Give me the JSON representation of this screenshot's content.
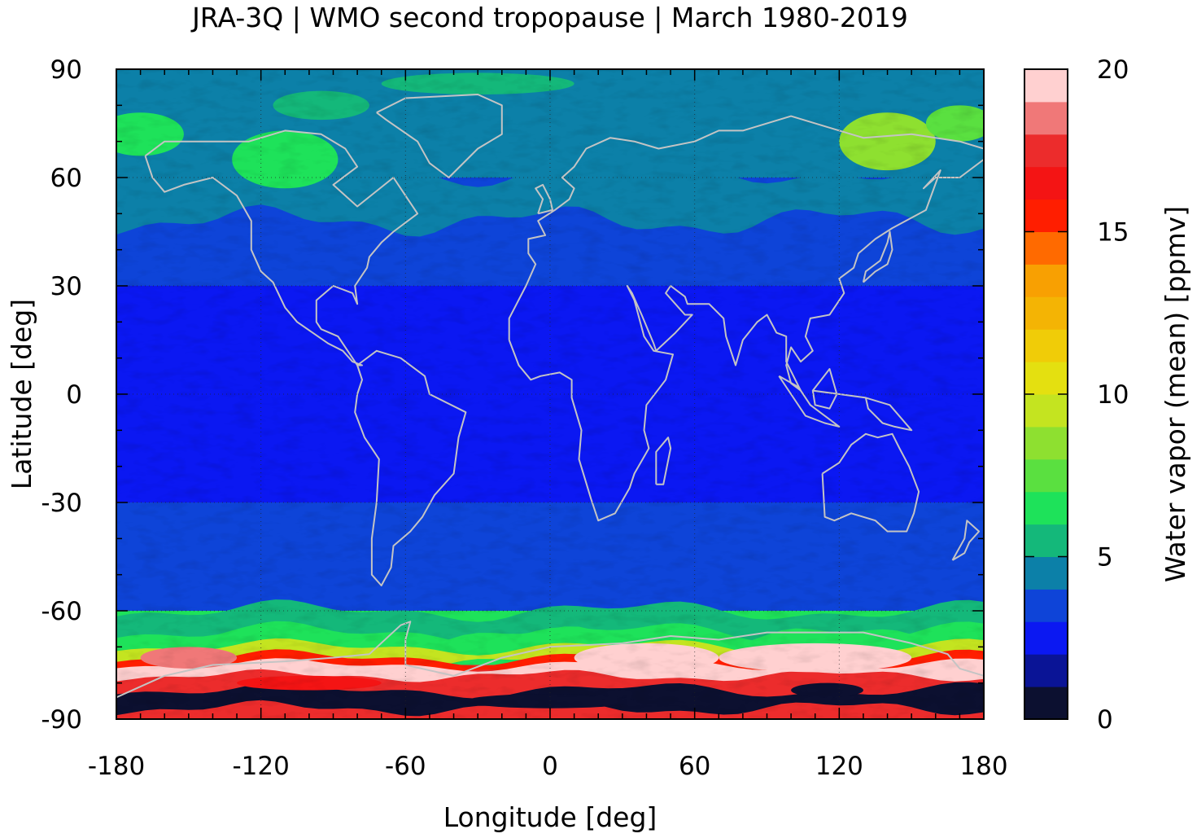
{
  "title": "JRA-3Q | WMO second tropopause | March 1980-2019",
  "xlabel": "Longitude [deg]",
  "ylabel": "Latitude [deg]",
  "colorbar": {
    "label": "Water vapor (mean) [ppmv]",
    "min": 0,
    "max": 20,
    "ticks": [
      "0",
      "5",
      "10",
      "15",
      "20"
    ],
    "levels": [
      "#0c1030",
      "#0a1496",
      "#0b18f2",
      "#0e44d8",
      "#0c80a8",
      "#14b87a",
      "#1ee25a",
      "#5ae040",
      "#8ee030",
      "#c4e420",
      "#e4e010",
      "#f0cc08",
      "#f4b404",
      "#f8a002",
      "#ff6a00",
      "#ff1e00",
      "#f41414",
      "#ec2c2c",
      "#f07878",
      "#ffd0d0"
    ]
  },
  "chart_data": {
    "type": "heatmap",
    "title": "JRA-3Q | WMO second tropopause | March 1980-2019",
    "xlabel": "Longitude [deg]",
    "ylabel": "Latitude [deg]",
    "xlim": [
      -180,
      180
    ],
    "ylim": [
      -90,
      90
    ],
    "xticks": [
      "-180",
      "-120",
      "-60",
      "0",
      "60",
      "120",
      "180"
    ],
    "yticks": [
      "90",
      "60",
      "30",
      "0",
      "-30",
      "-60",
      "-90"
    ],
    "grid": true,
    "zonal_pattern_ppmv": [
      {
        "lat": [
          60,
          90
        ],
        "value": 4.5
      },
      {
        "lat": [
          30,
          60
        ],
        "value": 3.5
      },
      {
        "lat": [
          -30,
          30
        ],
        "value": 2.5
      },
      {
        "lat": [
          -60,
          -30
        ],
        "value": 3.5
      },
      {
        "lat": [
          -75,
          -60
        ],
        "value": 6.5
      },
      {
        "lat": [
          -90,
          -75
        ],
        "value": 17
      }
    ]
  }
}
